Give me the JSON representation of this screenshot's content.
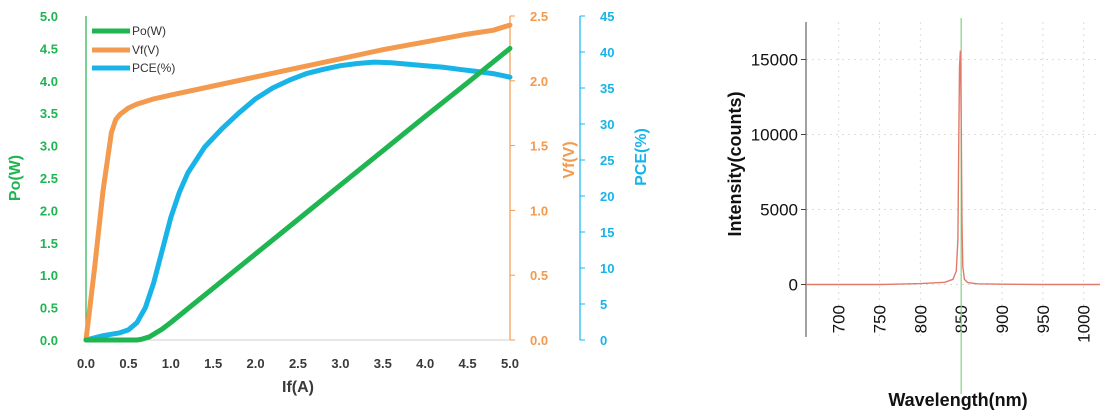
{
  "colors": {
    "po": "#1fb551",
    "vf": "#f39a4f",
    "pce": "#18b4e8",
    "tick_gray": "#3a3a3a",
    "spectrum_line": "#e07a6a",
    "spectrum_marker": "#7ed47e"
  },
  "chart_data": [
    {
      "type": "line",
      "x_tick_labels": [
        "0.0",
        "0.5",
        "1.0",
        "1.5",
        "2.0",
        "2.5",
        "3.0",
        "3.5",
        "4.0",
        "4.5",
        "5.0"
      ],
      "xlabel": "If(A)",
      "xlim": [
        0,
        5
      ],
      "grid": false,
      "legend_position": "top-left",
      "axes": {
        "po": {
          "label": "Po(W)",
          "ylim": [
            0,
            5
          ],
          "tick_labels": [
            "0.0",
            "0.5",
            "1.0",
            "1.5",
            "2.0",
            "2.5",
            "3.0",
            "3.5",
            "4.0",
            "4.5",
            "5.0"
          ]
        },
        "vf": {
          "label": "Vf(V)",
          "ylim": [
            0,
            2.5
          ],
          "tick_labels": [
            "0.0",
            "0.5",
            "1.0",
            "1.5",
            "2.0",
            "2.5"
          ]
        },
        "pce": {
          "label": "PCE(%)",
          "ylim": [
            0,
            45
          ],
          "tick_labels": [
            "0",
            "5",
            "10",
            "15",
            "20",
            "25",
            "30",
            "35",
            "40",
            "45"
          ]
        }
      },
      "series": [
        {
          "name": "Po(W)",
          "axis": "po",
          "x": [
            0,
            0.5,
            0.6,
            0.65,
            0.75,
            0.9,
            1.0,
            1.5,
            2.0,
            2.5,
            3.0,
            3.5,
            4.0,
            4.5,
            5.0
          ],
          "y": [
            0,
            0,
            0,
            0.01,
            0.05,
            0.17,
            0.27,
            0.8,
            1.33,
            1.86,
            2.39,
            2.92,
            3.45,
            3.97,
            4.5
          ]
        },
        {
          "name": "Vf(V)",
          "axis": "vf",
          "x": [
            0,
            0.1,
            0.2,
            0.3,
            0.35,
            0.4,
            0.5,
            0.6,
            0.8,
            1.0,
            1.5,
            2.0,
            2.5,
            3.0,
            3.5,
            4.0,
            4.5,
            4.8,
            5.0
          ],
          "y": [
            0,
            0.55,
            1.15,
            1.6,
            1.7,
            1.74,
            1.79,
            1.82,
            1.86,
            1.89,
            1.96,
            2.03,
            2.1,
            2.17,
            2.24,
            2.3,
            2.36,
            2.39,
            2.43
          ]
        },
        {
          "name": "PCE(%)",
          "axis": "pce",
          "x": [
            0,
            0.2,
            0.4,
            0.5,
            0.6,
            0.7,
            0.8,
            0.9,
            1.0,
            1.1,
            1.2,
            1.4,
            1.6,
            1.8,
            2.0,
            2.2,
            2.4,
            2.6,
            2.8,
            3.0,
            3.2,
            3.4,
            3.6,
            3.8,
            4.0,
            4.2,
            4.4,
            4.6,
            4.8,
            5.0
          ],
          "y": [
            0,
            0.6,
            1.0,
            1.4,
            2.4,
            4.5,
            8.0,
            12.5,
            17.0,
            20.5,
            23.2,
            26.8,
            29.3,
            31.5,
            33.5,
            35.0,
            36.1,
            37.0,
            37.6,
            38.1,
            38.4,
            38.6,
            38.5,
            38.3,
            38.1,
            37.9,
            37.6,
            37.3,
            37.0,
            36.5
          ]
        }
      ]
    },
    {
      "type": "line",
      "xlabel": "Wavelength(nm)",
      "ylabel": "Intensity(counts)",
      "xlim": [
        660,
        1020
      ],
      "ylim": [
        -3500,
        17500
      ],
      "x_ticks": [
        700,
        750,
        800,
        850,
        900,
        950,
        1000
      ],
      "y_ticks": [
        0,
        5000,
        10000,
        15000
      ],
      "grid": true,
      "marker_x": 850,
      "series": [
        {
          "x": [
            660,
            700,
            750,
            800,
            830,
            840,
            844,
            846,
            847,
            848,
            849,
            850,
            851,
            852,
            854,
            858,
            870,
            900,
            950,
            1000,
            1020
          ],
          "y": [
            0,
            0,
            0,
            60,
            150,
            350,
            900,
            3000,
            9000,
            14500,
            15600,
            11000,
            4000,
            1200,
            350,
            130,
            50,
            20,
            0,
            0,
            0
          ]
        }
      ]
    }
  ]
}
